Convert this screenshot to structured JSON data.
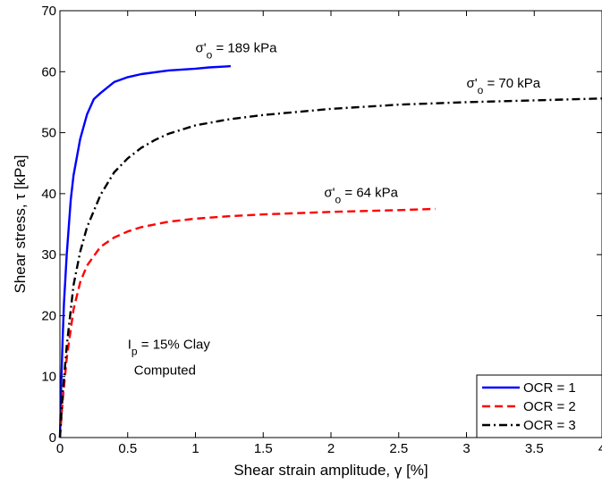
{
  "chart_data": {
    "type": "line",
    "xlabel": "Shear strain amplitude, γ [%]",
    "ylabel": "Shear stress, τ [kPa]",
    "xlim": [
      0,
      4
    ],
    "ylim": [
      0,
      70
    ],
    "x_ticks": [
      0,
      0.5,
      1,
      1.5,
      2,
      2.5,
      3,
      3.5,
      4
    ],
    "x_tick_labels": [
      "0",
      "0.5",
      "1",
      "1.5",
      "2",
      "2.5",
      "3",
      "3.5",
      "4"
    ],
    "y_ticks": [
      0,
      10,
      20,
      30,
      40,
      50,
      60,
      70
    ],
    "y_tick_labels": [
      "0",
      "10",
      "20",
      "30",
      "40",
      "50",
      "60",
      "70"
    ],
    "grid": false,
    "legend_position": "bottom-right",
    "series": [
      {
        "name": "OCR = 1",
        "color": "#0000ff",
        "dash": "solid",
        "x": [
          0,
          0.01,
          0.02,
          0.03,
          0.05,
          0.08,
          0.1,
          0.15,
          0.2,
          0.25,
          0.3,
          0.4,
          0.5,
          0.6,
          0.8,
          1.0,
          1.1,
          1.26
        ],
        "y": [
          0,
          9,
          16,
          22,
          30,
          39,
          43,
          49,
          53,
          55.5,
          56.5,
          58.3,
          59.1,
          59.6,
          60.2,
          60.5,
          60.7,
          60.9
        ]
      },
      {
        "name": "OCR = 2",
        "color": "#ff0000",
        "dash": "dashed",
        "x": [
          0,
          0.02,
          0.05,
          0.1,
          0.15,
          0.2,
          0.3,
          0.4,
          0.5,
          0.6,
          0.8,
          1.0,
          1.25,
          1.5,
          2.0,
          2.5,
          2.77
        ],
        "y": [
          0,
          6,
          13,
          21,
          25.5,
          28.2,
          31.3,
          32.8,
          33.8,
          34.5,
          35.4,
          35.9,
          36.3,
          36.6,
          37.0,
          37.3,
          37.5
        ]
      },
      {
        "name": "OCR = 3",
        "color": "#000000",
        "dash": "dashdot",
        "x": [
          0,
          0.02,
          0.05,
          0.1,
          0.15,
          0.2,
          0.3,
          0.4,
          0.5,
          0.6,
          0.7,
          0.8,
          1.0,
          1.25,
          1.5,
          2.0,
          2.5,
          3.0,
          3.5,
          4.0
        ],
        "y": [
          0,
          7,
          15,
          25,
          30.5,
          34.5,
          39.8,
          43.5,
          45.8,
          47.5,
          48.8,
          49.8,
          51.2,
          52.2,
          52.9,
          53.9,
          54.6,
          55.0,
          55.3,
          55.6
        ]
      }
    ],
    "annotations": [
      {
        "sigma": "σ'",
        "sub": "o",
        "rest": " = 189 kPa",
        "x": 1.0,
        "y": 63.2
      },
      {
        "sigma": "σ'",
        "sub": "o",
        "rest": " = 70 kPa",
        "x": 3.0,
        "y": 57.4
      },
      {
        "sigma": "σ'",
        "sub": "o",
        "rest": " = 64 kPa",
        "x": 1.95,
        "y": 39.5
      }
    ],
    "note": {
      "line1_main": "I",
      "line1_sub": "p",
      "line1_rest": " = 15% Clay",
      "line2": "Computed",
      "x": 0.5,
      "y": 14.6
    }
  }
}
